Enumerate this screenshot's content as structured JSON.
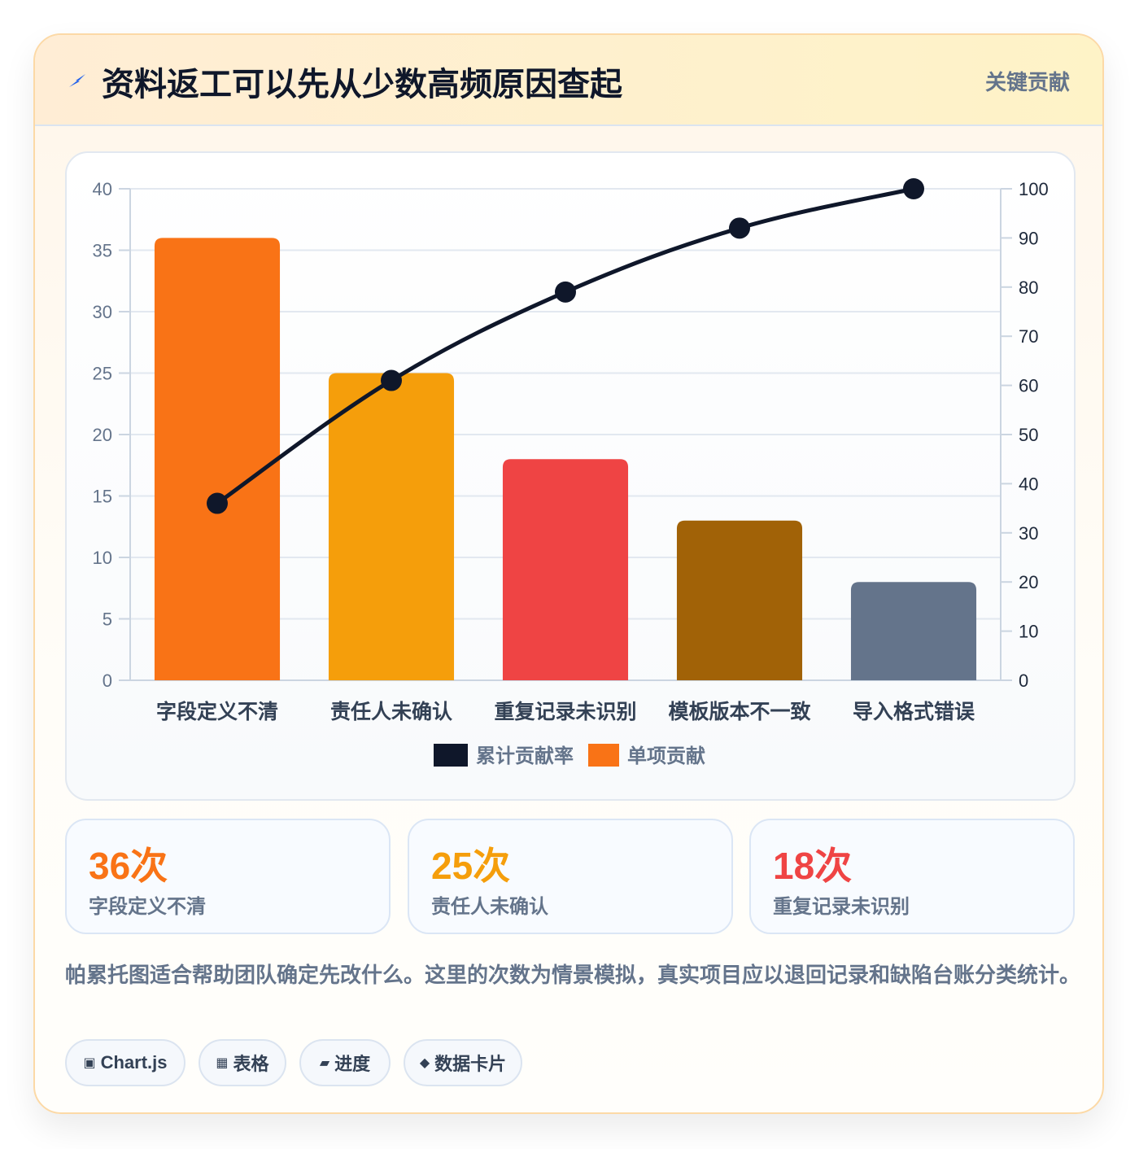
{
  "header": {
    "title": "资料返工可以先从少数高频原因查起",
    "tag": "关键贡献"
  },
  "chart_data": {
    "type": "bar",
    "categories": [
      "字段定义不清",
      "责任人未确认",
      "重复记录未识别",
      "模板版本不一致",
      "导入格式错误"
    ],
    "series": [
      {
        "name": "单项贡献",
        "type": "bar",
        "axis": "left",
        "values": [
          36,
          25,
          18,
          13,
          8
        ],
        "colors": [
          "#f97316",
          "#f59e0b",
          "#ef4444",
          "#a16207",
          "#64748b"
        ]
      },
      {
        "name": "累计贡献率",
        "type": "line",
        "axis": "right",
        "values": [
          36,
          61,
          79,
          92,
          100
        ],
        "color": "#0f172a"
      }
    ],
    "y_left": {
      "range": [
        0,
        40
      ],
      "ticks": [
        "0",
        "5",
        "10",
        "15",
        "20",
        "25",
        "30",
        "35",
        "40"
      ]
    },
    "y_right": {
      "range": [
        0,
        100
      ],
      "ticks": [
        "0",
        "10",
        "20",
        "30",
        "40",
        "50",
        "60",
        "70",
        "80",
        "90",
        "100"
      ]
    },
    "legend": [
      {
        "label": "累计贡献率",
        "color": "#0f172a"
      },
      {
        "label": "单项贡献",
        "color": "#f97316"
      }
    ],
    "legend_position": "bottom",
    "grid": true
  },
  "stats": [
    {
      "value": "36次",
      "label": "字段定义不清",
      "color": "#f97316"
    },
    {
      "value": "25次",
      "label": "责任人未确认",
      "color": "#f59e0b"
    },
    {
      "value": "18次",
      "label": "重复记录未识别",
      "color": "#ef4444"
    }
  ],
  "note": "帕累托图适合帮助团队确定先改什么。这里的次数为情景模拟，真实项目应以退回记录和缺陷台账分类统计。",
  "chips": [
    {
      "icon": "▣",
      "icon_name": "chart-icon",
      "label": "Chart.js"
    },
    {
      "icon": "▦",
      "icon_name": "table-icon",
      "label": "表格"
    },
    {
      "icon": "▰",
      "icon_name": "progress-icon",
      "label": "进度"
    },
    {
      "icon": "◆",
      "icon_name": "diamond-icon",
      "label": "数据卡片"
    }
  ]
}
